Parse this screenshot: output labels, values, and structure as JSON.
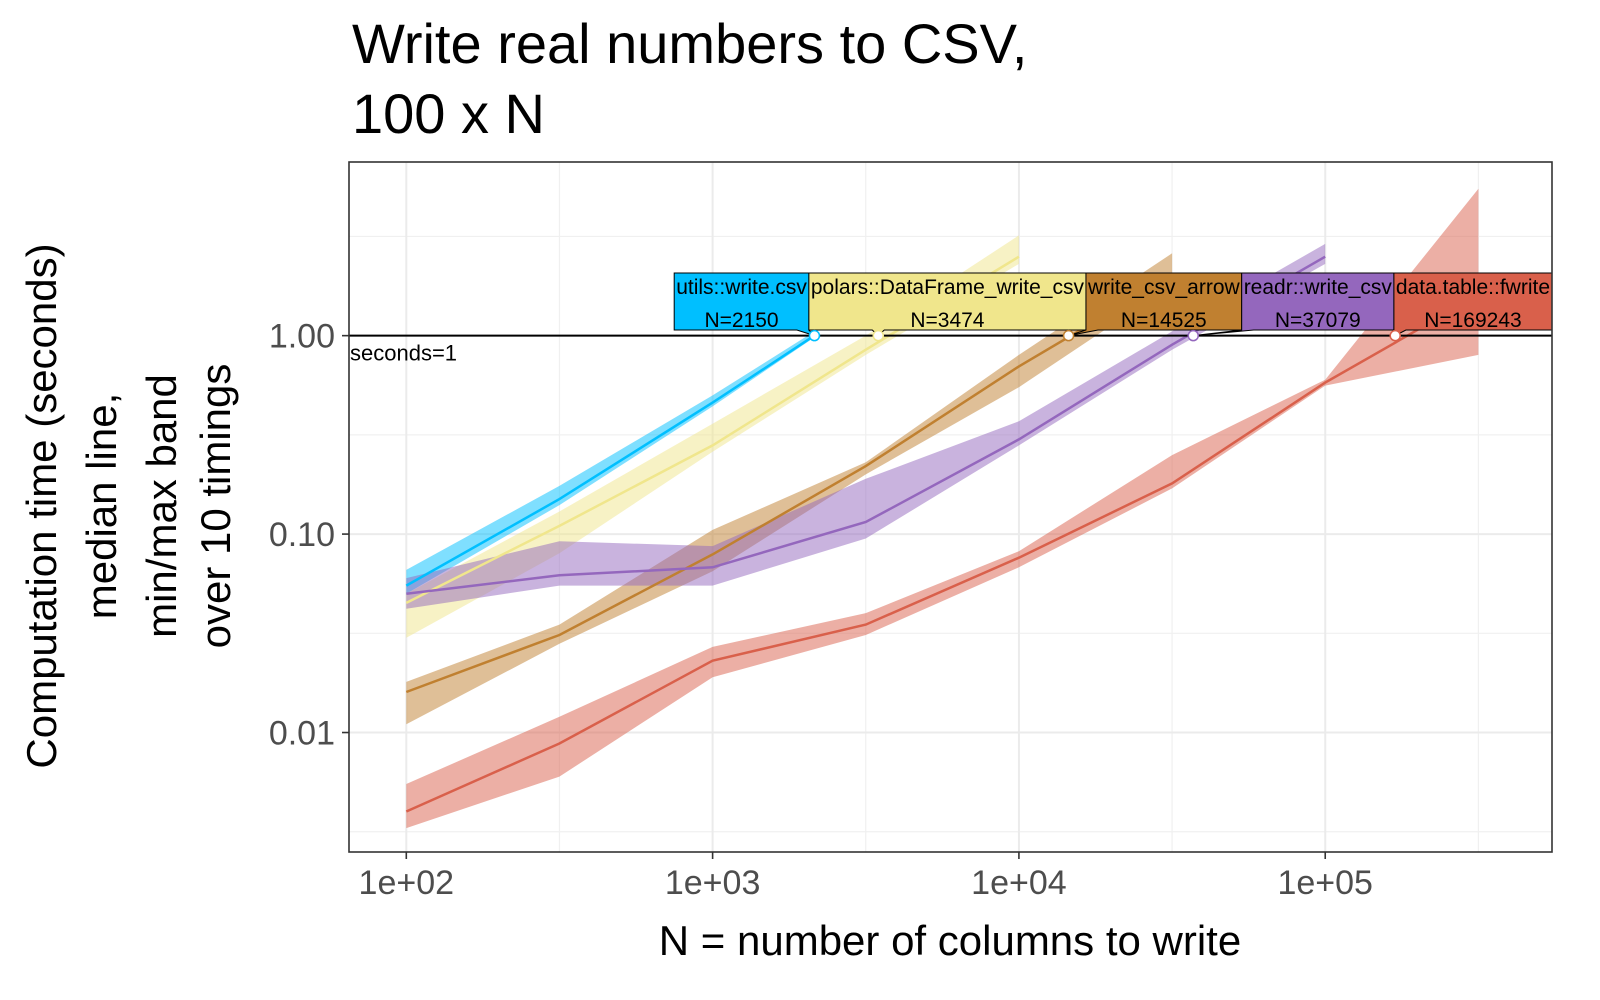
{
  "chart_data": {
    "type": "line",
    "title_lines": [
      "Write real numbers to CSV,",
      "100 x N"
    ],
    "xlabel": "N = number of columns to write",
    "ylabel_lines": [
      "Computation time (seconds)",
      "median line,",
      "min/max band",
      "over 10 timings"
    ],
    "x_scale": "log10",
    "y_scale": "log10",
    "xlim": [
      65,
      550000
    ],
    "ylim": [
      0.0025,
      7.5
    ],
    "x_ticks": [
      100,
      1000,
      10000,
      100000
    ],
    "x_tick_labels": [
      "1e+02",
      "1e+03",
      "1e+04",
      "1e+05"
    ],
    "y_ticks": [
      0.01,
      0.1,
      1
    ],
    "y_tick_labels": [
      "0.01",
      "0.10",
      "1.00"
    ],
    "grid": true,
    "reference_line": {
      "y": 1,
      "label": "seconds=1"
    },
    "series": [
      {
        "name": "utils::write.csv",
        "color": "#00BFFF",
        "x": [
          100,
          316,
          1000,
          2150
        ],
        "median": [
          0.055,
          0.15,
          0.46,
          1.0
        ],
        "min": [
          0.05,
          0.14,
          0.44,
          0.98
        ],
        "max": [
          0.066,
          0.175,
          0.5,
          1.05
        ],
        "label_N": "N=2150",
        "crossing_x": 2150
      },
      {
        "name": "polars::DataFrame_write_csv",
        "color": "#F0E68C",
        "x": [
          100,
          316,
          1000,
          3162,
          10000
        ],
        "median": [
          0.045,
          0.11,
          0.28,
          0.85,
          2.5
        ],
        "min": [
          0.03,
          0.08,
          0.26,
          0.8,
          2.3
        ],
        "max": [
          0.05,
          0.13,
          0.36,
          1.0,
          3.2
        ],
        "label_N": "N=3474",
        "crossing_x": 3474
      },
      {
        "name": "write_csv_arrow",
        "color": "#C08030",
        "x": [
          100,
          316,
          1000,
          3162,
          10000,
          31623
        ],
        "median": [
          0.016,
          0.031,
          0.079,
          0.22,
          0.7,
          2.0
        ],
        "min": [
          0.011,
          0.028,
          0.065,
          0.2,
          0.55,
          1.8
        ],
        "max": [
          0.018,
          0.035,
          0.105,
          0.23,
          0.8,
          2.6
        ],
        "label_N": "N=14525",
        "crossing_x": 14525
      },
      {
        "name": "readr::write_csv",
        "color": "#9467BD",
        "x": [
          100,
          316,
          1000,
          3162,
          10000,
          31623,
          100000
        ],
        "median": [
          0.05,
          0.062,
          0.068,
          0.115,
          0.3,
          0.9,
          2.5
        ],
        "min": [
          0.042,
          0.055,
          0.055,
          0.095,
          0.28,
          0.85,
          2.3
        ],
        "max": [
          0.06,
          0.092,
          0.087,
          0.19,
          0.37,
          1.05,
          2.9
        ],
        "label_N": "N=37079",
        "crossing_x": 37079
      },
      {
        "name": "data.table::fwrite",
        "color": "#D9604B",
        "x": [
          100,
          316,
          1000,
          3162,
          10000,
          31623,
          100000,
          316228
        ],
        "median": [
          0.004,
          0.0088,
          0.023,
          0.035,
          0.076,
          0.18,
          0.58,
          1.6
        ],
        "min": [
          0.0033,
          0.006,
          0.019,
          0.031,
          0.068,
          0.17,
          0.56,
          0.8
        ],
        "max": [
          0.0055,
          0.012,
          0.027,
          0.04,
          0.082,
          0.25,
          0.6,
          5.5
        ],
        "label_N": "N=169243",
        "crossing_x": 169243
      }
    ]
  }
}
